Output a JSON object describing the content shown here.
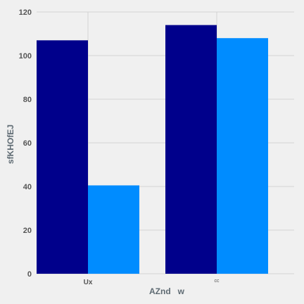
{
  "chart_data": {
    "type": "bar",
    "categories": [
      "Ux",
      "cc"
    ],
    "series": [
      {
        "values": [
          107,
          114
        ],
        "color": "#00008b"
      },
      {
        "values": [
          40.5,
          108
        ],
        "color": "#008cff"
      }
    ],
    "xlabel": "AZnd   w",
    "ylabel": "sfKHOfEJ",
    "ylim": [
      0,
      120
    ],
    "yticks": [
      0,
      20,
      40,
      60,
      80,
      100,
      120
    ],
    "grid": true,
    "background": "#f0f0f0",
    "grid_color": "#d3d3d3"
  }
}
